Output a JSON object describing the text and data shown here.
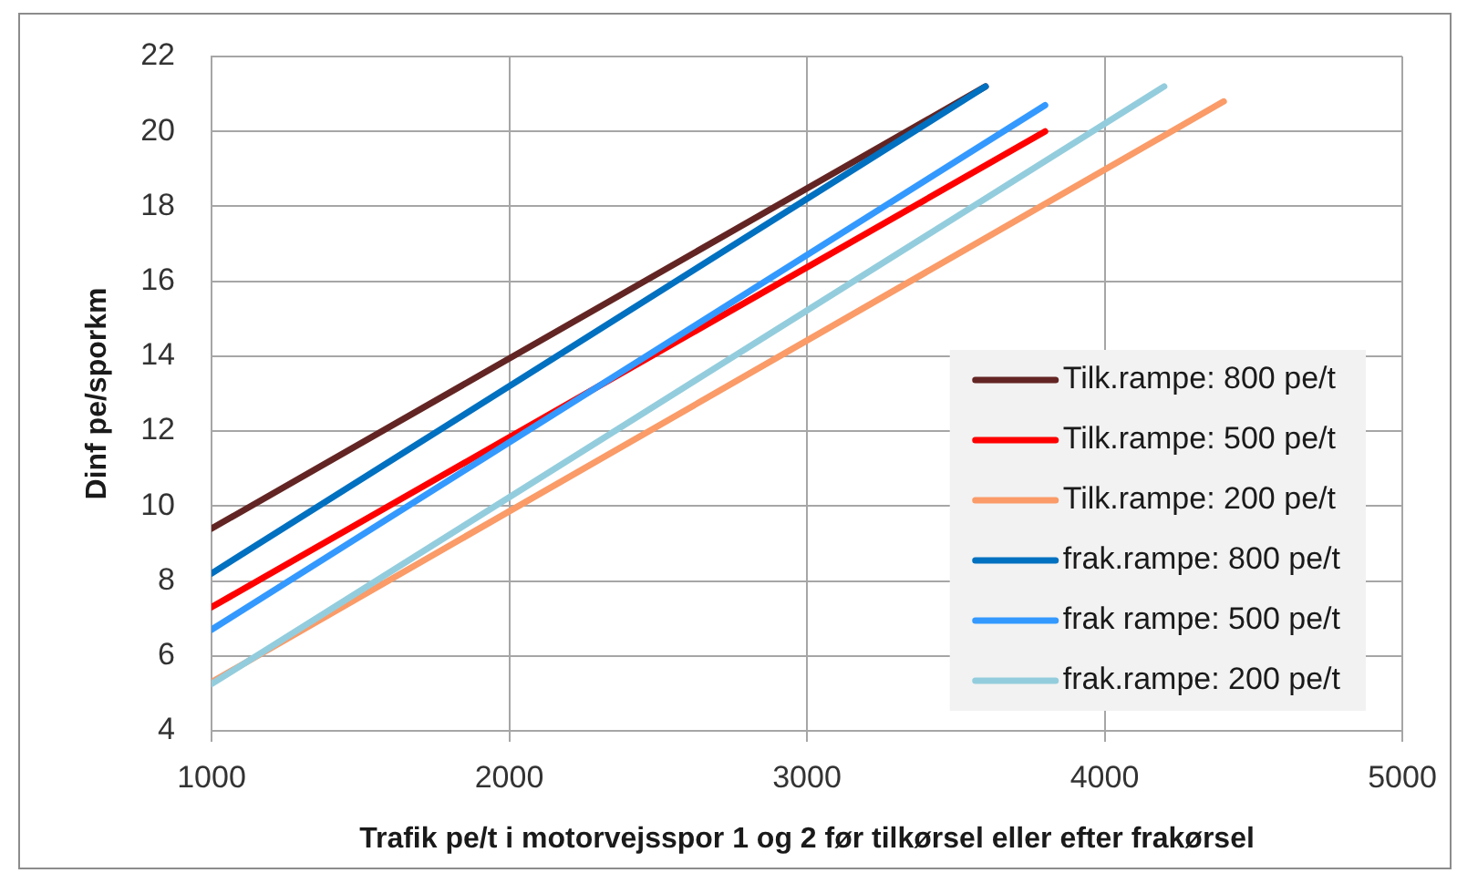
{
  "chart_data": {
    "type": "line",
    "xlabel": "Trafik pe/t i motorvejsspor 1 og 2 før tilkørsel eller efter frakørsel",
    "ylabel": "Dinf pe/sporkm",
    "xlim": [
      1000,
      5000
    ],
    "xticks": [
      1000,
      2000,
      3000,
      4000,
      5000
    ],
    "ylim": [
      4,
      22
    ],
    "yticks": [
      4,
      6,
      8,
      10,
      12,
      14,
      16,
      18,
      20,
      22
    ],
    "grid": true,
    "legend": "bottom right",
    "marker": "none",
    "line_style": "solid",
    "series": [
      {
        "name": "Tilk.rampe: 800 pe/t",
        "color": "#632523",
        "x": [
          1000,
          3600
        ],
        "values": [
          9.4,
          21.2
        ]
      },
      {
        "name": "Tilk.rampe: 500 pe/t",
        "color": "#ff0000",
        "x": [
          1000,
          3800
        ],
        "values": [
          7.3,
          20.0
        ]
      },
      {
        "name": "Tilk.rampe: 200 pe/t",
        "color": "#fa9b68",
        "x": [
          1000,
          4400
        ],
        "values": [
          5.3,
          20.8
        ]
      },
      {
        "name": "frak.rampe: 800 pe/t",
        "color": "#0070c0",
        "x": [
          1000,
          3600
        ],
        "values": [
          8.2,
          21.2
        ]
      },
      {
        "name": "frak rampe: 500 pe/t",
        "color": "#3399ff",
        "x": [
          1000,
          3800
        ],
        "values": [
          6.7,
          20.7
        ]
      },
      {
        "name": "frak.rampe: 200 pe/t",
        "color": "#93cddd",
        "x": [
          1000,
          4200
        ],
        "values": [
          5.25,
          21.2
        ]
      }
    ]
  }
}
